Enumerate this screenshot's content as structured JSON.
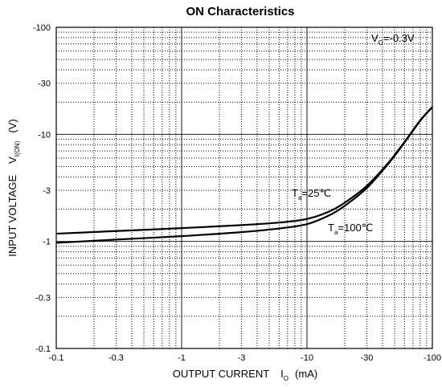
{
  "chart_data": {
    "type": "line",
    "title": "ON Characteristics",
    "xlabel": {
      "main": "OUTPUT CURRENT",
      "symbol": "I",
      "subscript": "O",
      "unit": "(mA)"
    },
    "ylabel": {
      "main": "INPUT VOLTAGE",
      "symbol": "V",
      "subscript": "I(ON)",
      "unit": "(V)"
    },
    "x_scale": "log",
    "y_scale": "log",
    "x_note": "values are negative currents; axis magnitude increases to the right",
    "y_note": "values are negative voltages; axis magnitude increases upward",
    "xlim": [
      -0.1,
      -100
    ],
    "ylim": [
      -0.1,
      -100
    ],
    "x_ticks": [
      "-0.1",
      "-0.3",
      "-1",
      "-3",
      "-10",
      "-30",
      "-100"
    ],
    "y_ticks": [
      "-100",
      "-30",
      "-10",
      "-3",
      "-1",
      "-0.3",
      "-0.1"
    ],
    "grid": true,
    "condition": {
      "symbol": "V",
      "subscript": "O",
      "value": "=-0.3V"
    },
    "series": [
      {
        "name": "Ta=25℃",
        "label": {
          "symbol": "T",
          "subscript": "a",
          "value": "=25℃"
        },
        "x": [
          -0.1,
          -0.3,
          -1,
          -3,
          -6,
          -10,
          -15,
          -20,
          -30,
          -45,
          -60,
          -80,
          -100
        ],
        "y": [
          -1.18,
          -1.25,
          -1.33,
          -1.42,
          -1.5,
          -1.62,
          -1.9,
          -2.3,
          -3.3,
          -5.5,
          -8.5,
          -13.5,
          -18
        ]
      },
      {
        "name": "Ta=100℃",
        "label": {
          "symbol": "T",
          "subscript": "a",
          "value": "=100℃"
        },
        "x": [
          -0.1,
          -0.3,
          -1,
          -3,
          -6,
          -10,
          -15,
          -20,
          -30,
          -45,
          -60,
          -80,
          -100
        ],
        "y": [
          -0.97,
          -1.04,
          -1.12,
          -1.22,
          -1.32,
          -1.45,
          -1.75,
          -2.15,
          -3.15,
          -5.4,
          -8.4,
          -13.4,
          -18
        ]
      }
    ]
  }
}
